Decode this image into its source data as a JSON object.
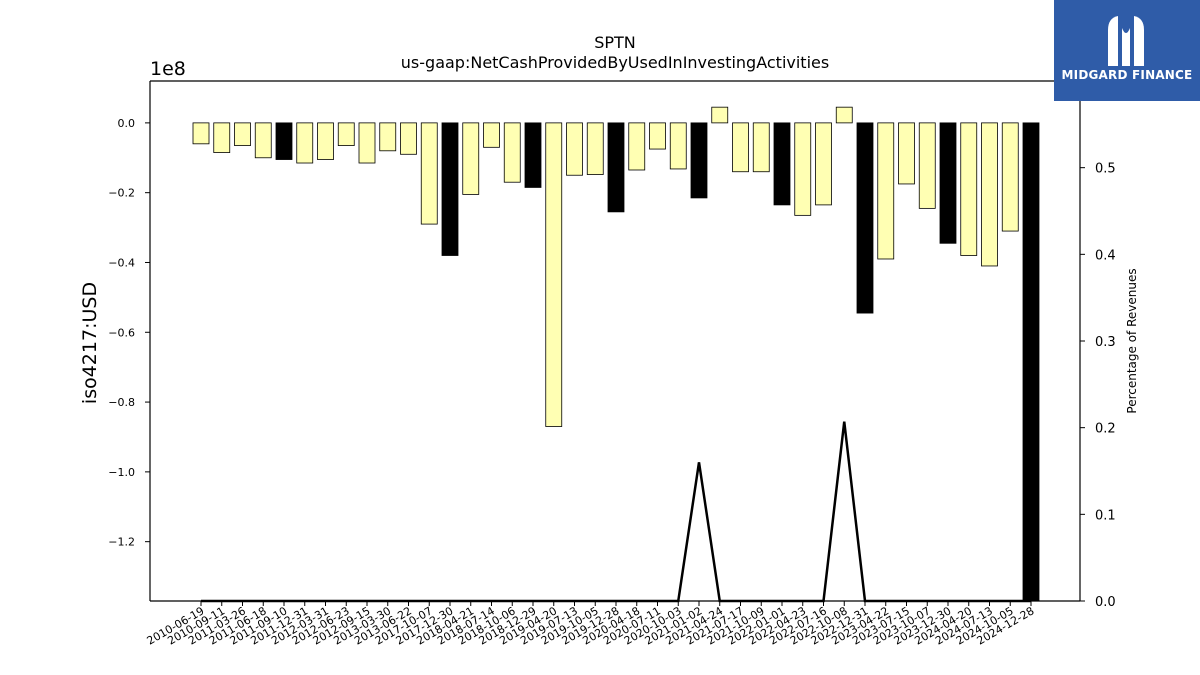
{
  "chart_data": {
    "type": "bar",
    "title": "SPTN",
    "subtitle": "us-gaap:NetCashProvidedByUsedInInvestingActivities",
    "ylabel": "iso4217:USD",
    "y_multiplier_label": "1e8",
    "y2label": "Percentage of Revenues",
    "ylim": [
      -1.37,
      0.12
    ],
    "y2lim": [
      0.0,
      0.6
    ],
    "yticks": [
      "0.0",
      "−0.2",
      "−0.4",
      "−0.6",
      "−0.8",
      "−1.0",
      "−1.2"
    ],
    "y2ticks": [
      "0.0",
      "0.1",
      "0.2",
      "0.3",
      "0.4",
      "0.5"
    ],
    "categories": [
      "2010-06-19",
      "2010-09-11",
      "2011-03-26",
      "2011-06-18",
      "2011-09-10",
      "2011-12-31",
      "2012-03-31",
      "2012-06-23",
      "2012-09-15",
      "2013-03-30",
      "2013-06-22",
      "2017-10-07",
      "2017-12-30",
      "2018-04-21",
      "2018-07-14",
      "2018-10-06",
      "2018-12-29",
      "2019-04-20",
      "2019-07-13",
      "2019-10-05",
      "2019-12-28",
      "2020-04-18",
      "2020-07-11",
      "2020-10-03",
      "2021-01-02",
      "2021-04-24",
      "2021-07-17",
      "2021-10-09",
      "2022-01-01",
      "2022-04-23",
      "2022-07-16",
      "2022-10-08",
      "2022-12-31",
      "2023-04-22",
      "2023-07-15",
      "2023-10-07",
      "2023-12-30",
      "2024-04-20",
      "2024-07-13",
      "2024-10-05",
      "2024-12-28"
    ],
    "values": [
      -0.06,
      -0.085,
      -0.065,
      -0.1,
      -0.105,
      -0.115,
      -0.105,
      -0.065,
      -0.115,
      -0.08,
      -0.09,
      -0.29,
      -0.38,
      -0.205,
      -0.07,
      -0.17,
      -0.185,
      -0.87,
      -0.15,
      -0.148,
      -0.255,
      -0.135,
      -0.075,
      -0.132,
      -0.215,
      0.045,
      -0.14,
      -0.14,
      -0.235,
      -0.265,
      -0.235,
      0.045,
      -0.545,
      -0.39,
      -0.175,
      -0.245,
      -0.345,
      -0.38,
      -0.41,
      -0.31,
      -1.37
    ],
    "highlighted": [
      false,
      false,
      false,
      false,
      true,
      false,
      false,
      false,
      false,
      false,
      false,
      false,
      true,
      false,
      false,
      false,
      true,
      false,
      false,
      false,
      true,
      false,
      false,
      false,
      true,
      false,
      false,
      false,
      true,
      false,
      false,
      false,
      true,
      false,
      false,
      false,
      true,
      false,
      false,
      false,
      true
    ],
    "bar_color": "#ffffb3",
    "highlight_color": "#000000",
    "pct_revenue_line": [
      0,
      0,
      0,
      0,
      0,
      0,
      0,
      0,
      0,
      0,
      0,
      0,
      0,
      0,
      0,
      0,
      0,
      0,
      0,
      0,
      0,
      0,
      0,
      0,
      0.16,
      0,
      0,
      0,
      0,
      0,
      0,
      0.207,
      0,
      0,
      0,
      0,
      0,
      0,
      0,
      0,
      0
    ],
    "grid": false
  },
  "logo": {
    "text": "MIDGARD FINANCE",
    "color": "#2f5ca8"
  }
}
